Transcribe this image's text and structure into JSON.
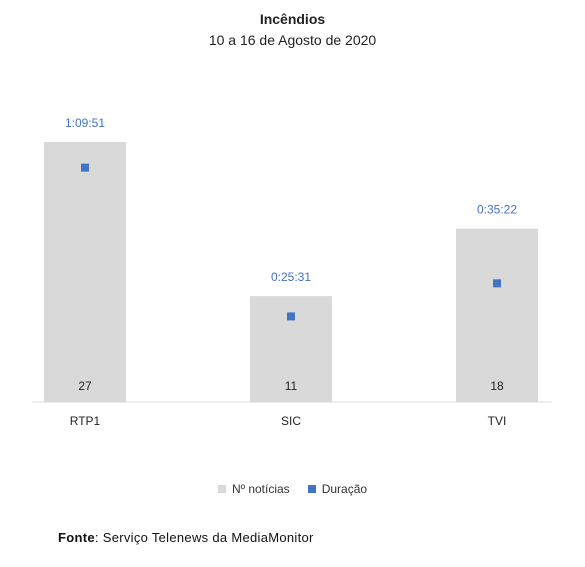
{
  "chart_data": {
    "type": "bar",
    "title": "Incêndios",
    "subtitle": "10 a 16 de Agosto de 2020",
    "categories": [
      "RTP1",
      "SIC",
      "TVI"
    ],
    "series": [
      {
        "name": "Nº notícias",
        "values": [
          27,
          11,
          18
        ],
        "color": "#d9d9d9"
      },
      {
        "name": "Duração",
        "values": [
          "1:09:51",
          "0:25:31",
          "0:35:22"
        ],
        "seconds": [
          4191,
          1531,
          2122
        ],
        "color": "#4472c4"
      }
    ],
    "ylim_noticias": [
      0,
      27
    ],
    "ylim_duracao_seconds": [
      0,
      4650
    ],
    "legend_position": "bottom",
    "grid": false
  },
  "source": {
    "label": "Fonte",
    "text": "Serviço Telenews da MediaMonitor"
  }
}
